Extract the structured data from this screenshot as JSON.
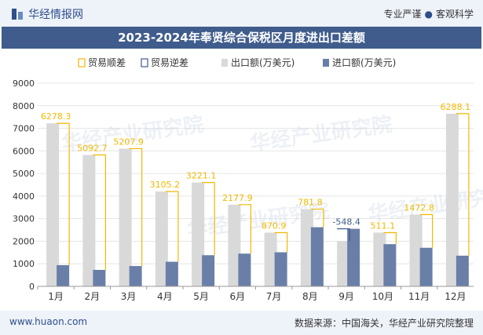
{
  "header": {
    "brand": "华经情报网",
    "slogan_left": "专业严谨",
    "slogan_right": "客观科学"
  },
  "footer": {
    "site": "www.huaon.com",
    "source": "数据来源：中国海关，华经产业研究院整理"
  },
  "watermark": "华经产业研究院",
  "colors": {
    "surplus": "#f2b800",
    "deficit": "#3f5c8c",
    "export": "#d9d9d9",
    "import": "#6a7fa8",
    "title_bg": "#3f5c8c"
  },
  "chart_data": {
    "type": "bar",
    "title": "2023-2024年奉贤综合保税区月度进出口差额",
    "categories": [
      "1月",
      "2月",
      "3月",
      "4月",
      "5月",
      "6月",
      "7月",
      "8月",
      "9月",
      "10月",
      "11月",
      "12月"
    ],
    "legend": [
      "贸易顺差",
      "贸易逆差",
      "出口额(万美元)",
      "进口额(万美元)"
    ],
    "legend_position": "top",
    "series": [
      {
        "name": "出口额(万美元)",
        "values": [
          7220,
          5820,
          6100,
          4200,
          4600,
          3620,
          2380,
          3420,
          2000,
          2380,
          3180,
          7650
        ]
      },
      {
        "name": "进口额(万美元)",
        "values": [
          940,
          730,
          900,
          1090,
          1380,
          1450,
          1510,
          2620,
          2550,
          1870,
          1710,
          1360
        ]
      }
    ],
    "balance": [
      6278.3,
      5092.7,
      5207.9,
      3105.2,
      3221.1,
      2177.9,
      870.9,
      781.8,
      -548.4,
      511.1,
      1472.8,
      6288.1
    ],
    "balance_labels": [
      "6278.3",
      "5092.7",
      "5207.9",
      "3105.2",
      "3221.1",
      "2177.9",
      "870.9",
      "781.8",
      "-548.4",
      "511.1",
      "1472.8",
      "6288.1"
    ],
    "ylim": [
      0,
      9000
    ],
    "yticks": [
      "0",
      "1000",
      "2000",
      "3000",
      "4000",
      "5000",
      "6000",
      "7000",
      "8000",
      "9000"
    ],
    "grid": true
  }
}
